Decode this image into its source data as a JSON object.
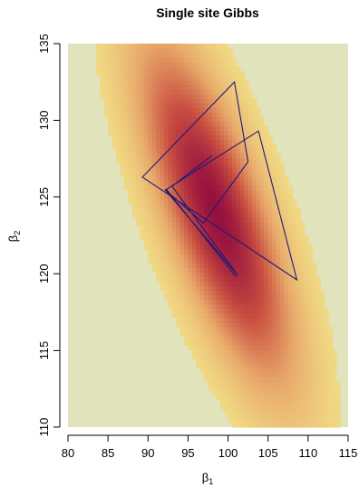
{
  "chart_data": {
    "type": "heatmap",
    "title": "Single site Gibbs",
    "xlabel": "β",
    "xlabel_subscript": "1",
    "ylabel": "β",
    "ylabel_subscript": "2",
    "xlim": [
      80,
      115
    ],
    "ylim": [
      110,
      135
    ],
    "xticks": [
      "80",
      "85",
      "90",
      "95",
      "100",
      "105",
      "110",
      "115"
    ],
    "yticks": [
      "110",
      "115",
      "120",
      "125",
      "130",
      "135"
    ],
    "background_color": "#e0e3bb",
    "colormap": [
      "#f2e489",
      "#e8a86a",
      "#c84e40",
      "#96103f"
    ],
    "density": {
      "mean": [
        98.5,
        124.0
      ],
      "sd": [
        6.0,
        7.0
      ],
      "correlation": -0.74,
      "cutoff_mahalanobis": 2.58
    },
    "path_color": "#1d1a7a",
    "path": [
      {
        "x": 101.0,
        "y": 119.8
      },
      {
        "x": 92.3,
        "y": 125.5
      },
      {
        "x": 103.8,
        "y": 129.3
      },
      {
        "x": 108.6,
        "y": 119.6
      },
      {
        "x": 89.3,
        "y": 126.3
      },
      {
        "x": 100.8,
        "y": 132.5
      },
      {
        "x": 102.5,
        "y": 127.3
      },
      {
        "x": 96.9,
        "y": 123.3
      },
      {
        "x": 92.1,
        "y": 125.5
      },
      {
        "x": 101.2,
        "y": 119.9
      },
      {
        "x": 93.0,
        "y": 125.7
      },
      {
        "x": 98.0,
        "y": 127.7
      }
    ]
  }
}
